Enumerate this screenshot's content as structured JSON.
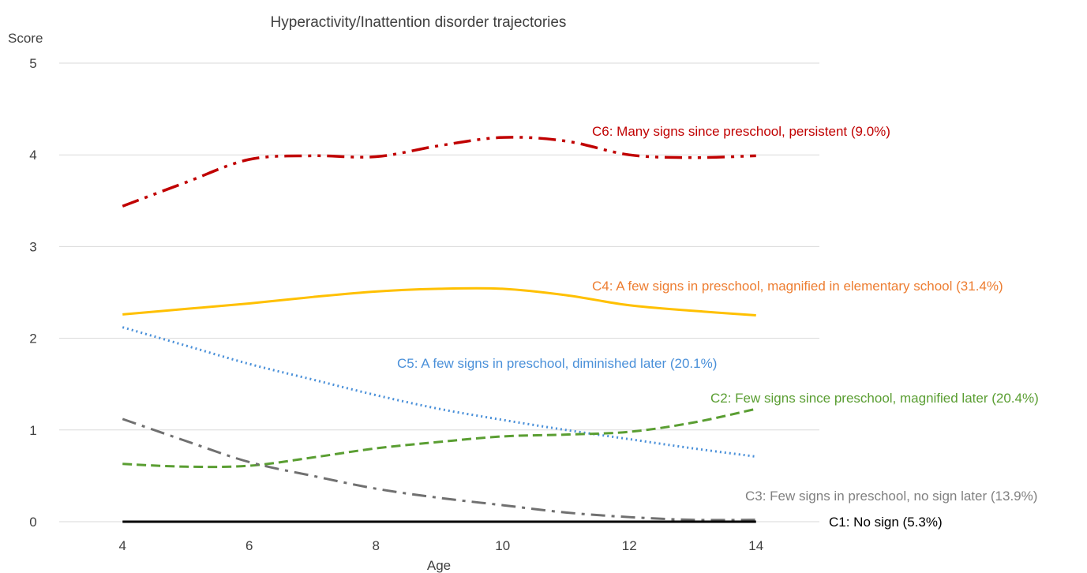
{
  "chart_data": {
    "type": "line",
    "title": "Hyperactivity/Inattention disorder trajectories",
    "y_label": "Score",
    "x_label": "Age",
    "x": [
      4,
      5,
      6,
      7,
      8,
      9,
      10,
      11,
      12,
      13,
      14
    ],
    "xlim": [
      3,
      15
    ],
    "xticks": [
      4,
      6,
      8,
      10,
      12,
      14
    ],
    "ylim": [
      0,
      5
    ],
    "yticks": [
      0,
      1,
      2,
      3,
      4,
      5
    ],
    "grid": true,
    "series": [
      {
        "name": "C6: Many signs since preschool, persistent (9.0%)",
        "color": "#c00000",
        "label_color": "#c00000",
        "values": [
          3.44,
          3.7,
          3.95,
          3.99,
          3.98,
          4.1,
          4.19,
          4.15,
          4.0,
          3.97,
          3.99
        ]
      },
      {
        "name": "C4: A few signs in preschool, magnified in elementary school (31.4%)",
        "color": "#ffc000",
        "label_color": "#ed7d31",
        "values": [
          2.26,
          2.32,
          2.38,
          2.45,
          2.51,
          2.54,
          2.54,
          2.47,
          2.36,
          2.3,
          2.25
        ]
      },
      {
        "name": "C5: A few signs in preschool, diminished later (20.1%)",
        "color": "#4a90d9",
        "label_color": "#4a90d9",
        "values": [
          2.12,
          1.92,
          1.72,
          1.55,
          1.38,
          1.23,
          1.11,
          1.0,
          0.9,
          0.8,
          0.71
        ]
      },
      {
        "name": "C2: Few signs since preschool, magnified later (20.4%)",
        "color": "#5a9e32",
        "label_color": "#5a9e32",
        "values": [
          0.63,
          0.6,
          0.61,
          0.7,
          0.8,
          0.87,
          0.93,
          0.95,
          0.98,
          1.08,
          1.23
        ]
      },
      {
        "name": "C3: Few signs in preschool, no sign later (13.9%)",
        "color": "#707070",
        "label_color": "#808080",
        "values": [
          1.12,
          0.88,
          0.65,
          0.5,
          0.36,
          0.26,
          0.18,
          0.1,
          0.05,
          0.02,
          0.02
        ]
      },
      {
        "name": "C1: No sign (5.3%)",
        "color": "#000000",
        "label_color": "#000000",
        "values": [
          0,
          0,
          0,
          0,
          0,
          0,
          0,
          0,
          0,
          0,
          0
        ]
      }
    ]
  }
}
